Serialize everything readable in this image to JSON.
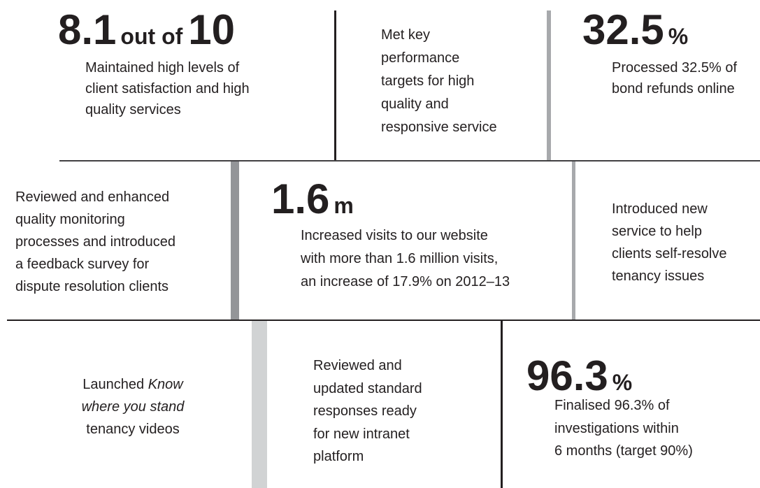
{
  "blocks": [
    {
      "figure": [
        "8.1",
        "out of",
        "10"
      ],
      "lines": [
        [
          {
            "text": "Maintained high levels of"
          }
        ],
        [
          {
            "text": "client satisfaction and high"
          }
        ],
        [
          {
            "text": "quality services"
          }
        ]
      ]
    },
    {
      "lines": [
        [
          {
            "text": "Met key"
          }
        ],
        [
          {
            "text": "performance"
          }
        ],
        [
          {
            "text": "targets for high"
          }
        ],
        [
          {
            "text": "quality and"
          }
        ],
        [
          {
            "text": "responsive service"
          }
        ]
      ]
    },
    {
      "figure": [
        "32.5",
        "%"
      ],
      "lines": [
        [
          {
            "text": "Processed 32.5% of"
          }
        ],
        [
          {
            "text": "bond refunds online"
          }
        ]
      ]
    },
    {
      "lines": [
        [
          {
            "text": "Reviewed and enhanced"
          }
        ],
        [
          {
            "text": "quality monitoring"
          }
        ],
        [
          {
            "text": "processes and introduced"
          }
        ],
        [
          {
            "text": "a feedback survey for"
          }
        ],
        [
          {
            "text": "dispute resolution clients"
          }
        ]
      ]
    },
    {
      "figure": [
        "1.6",
        "m"
      ],
      "lines": [
        [
          {
            "text": "Increased visits to our website"
          }
        ],
        [
          {
            "text": "with more than 1.6 million visits,"
          }
        ],
        [
          {
            "text": "an increase of 17.9% on 2012–13"
          }
        ]
      ]
    },
    {
      "lines": [
        [
          {
            "text": "Introduced new"
          }
        ],
        [
          {
            "text": "service to help"
          }
        ],
        [
          {
            "text": "clients self-resolve"
          }
        ],
        [
          {
            "text": "tenancy issues"
          }
        ]
      ]
    },
    {
      "lines": [
        [
          {
            "text": "Launched "
          },
          {
            "text": "Know",
            "italic": true
          }
        ],
        [
          {
            "text": "where you stand",
            "italic": true
          }
        ],
        [
          {
            "text": "tenancy videos"
          }
        ]
      ]
    },
    {
      "lines": [
        [
          {
            "text": "Reviewed and"
          }
        ],
        [
          {
            "text": "updated standard"
          }
        ],
        [
          {
            "text": "responses ready"
          }
        ],
        [
          {
            "text": "for new intranet"
          }
        ],
        [
          {
            "text": "platform"
          }
        ]
      ]
    },
    {
      "figure": [
        "96.3",
        "%"
      ],
      "lines": [
        [
          {
            "text": "Finalised 96.3% of"
          }
        ],
        [
          {
            "text": "investigations within"
          }
        ],
        [
          {
            "text": "6 months (target 90%)"
          }
        ]
      ]
    }
  ]
}
